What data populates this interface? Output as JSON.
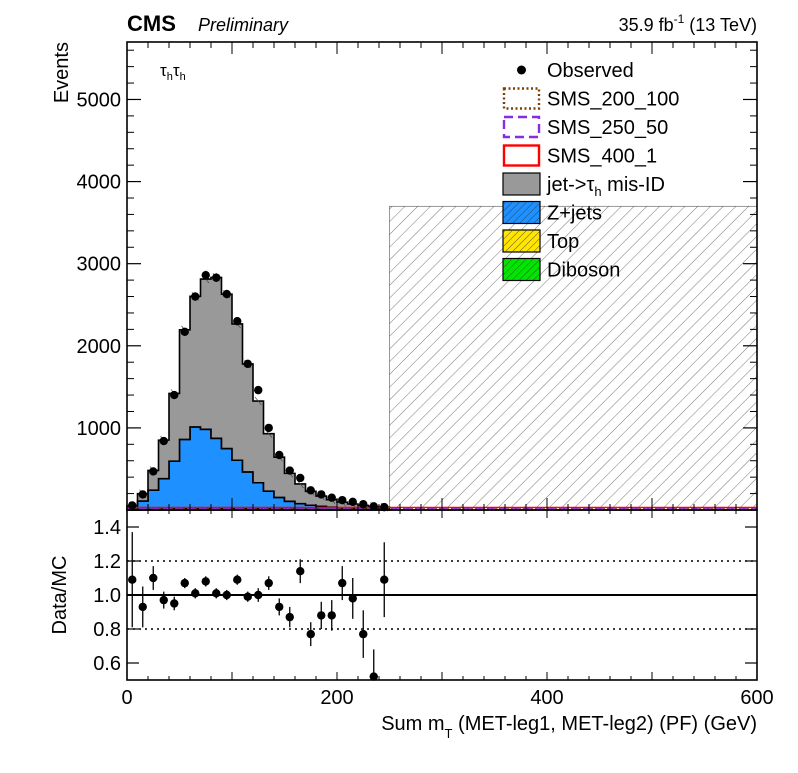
{
  "header": {
    "experiment": "CMS",
    "status": "Preliminary",
    "lumi_prefix": "35.9 fb",
    "lumi_exp": "-1",
    "lumi_suffix": " (13 TeV)"
  },
  "chart_data": {
    "type": "bar",
    "subtype": "stacked-histogram-with-ratio",
    "channel": {
      "tau": "τ",
      "sub": "h"
    },
    "upper": {
      "ylabel": "Events",
      "ylim": [
        0,
        5700
      ],
      "yticks": [
        1000,
        2000,
        3000,
        4000,
        5000
      ],
      "blinded_region": {
        "xmin": 250,
        "xmax": 600,
        "height": 3700
      }
    },
    "xlim": [
      0,
      600
    ],
    "xticks": [
      0,
      200,
      400,
      600
    ],
    "xlabel": {
      "pre": "Sum m",
      "sub": "T",
      "post": " (MET-leg1, MET-leg2) (PF) (GeV)"
    },
    "bin_edges": [
      0,
      10,
      20,
      30,
      40,
      50,
      60,
      70,
      80,
      90,
      100,
      110,
      120,
      130,
      140,
      150,
      160,
      170,
      180,
      190,
      200,
      210,
      220,
      230,
      240,
      250
    ],
    "series": [
      {
        "name": "Diboson",
        "color": "#00e600",
        "values": [
          1,
          2,
          4,
          6,
          8,
          10,
          12,
          12,
          12,
          12,
          11,
          10,
          9,
          8,
          7,
          6,
          5,
          4,
          4,
          3,
          3,
          3,
          2,
          2,
          2
        ]
      },
      {
        "name": "Top",
        "color": "#ffe500",
        "values": [
          1,
          2,
          3,
          5,
          7,
          9,
          10,
          11,
          11,
          11,
          10,
          9,
          8,
          7,
          6,
          5,
          4,
          4,
          3,
          3,
          2,
          2,
          2,
          2,
          1
        ]
      },
      {
        "name": "Z+jets",
        "color": "#1e90ff",
        "values": [
          18,
          105,
          235,
          370,
          580,
          840,
          990,
          960,
          850,
          725,
          585,
          445,
          315,
          215,
          140,
          95,
          68,
          50,
          38,
          28,
          21,
          16,
          12,
          9,
          8
        ]
      },
      {
        "name": "jet->τh mis-ID",
        "label_pre": "jet->τ",
        "label_sub": "h",
        "label_post": " mis-ID",
        "color": "#999999",
        "values": [
          30,
          90,
          240,
          470,
          825,
          1335,
          1590,
          1830,
          1960,
          1880,
          1660,
          1315,
          995,
          700,
          490,
          340,
          240,
          170,
          125,
          92,
          70,
          52,
          40,
          31,
          23
        ]
      }
    ],
    "signals": [
      {
        "name": "SMS_200_100",
        "color": "#7f3f00",
        "style": "dotted"
      },
      {
        "name": "SMS_250_50",
        "color": "#8a2be2",
        "style": "dashed"
      },
      {
        "name": "SMS_400_1",
        "color": "#ff0000",
        "style": "solid"
      }
    ],
    "observed": {
      "name": "Observed",
      "x": [
        5,
        15,
        25,
        35,
        45,
        55,
        65,
        75,
        85,
        95,
        105,
        115,
        125,
        135,
        145,
        155,
        165,
        175,
        185,
        195,
        205,
        215,
        225,
        235,
        245
      ],
      "y": [
        55,
        190,
        470,
        840,
        1400,
        2170,
        2600,
        2860,
        2830,
        2630,
        2300,
        1780,
        1460,
        1000,
        670,
        480,
        390,
        240,
        190,
        150,
        120,
        100,
        70,
        45,
        35
      ]
    },
    "legend": {
      "placement": "top-right",
      "entries": [
        "Observed",
        "SMS_200_100",
        "SMS_250_50",
        "SMS_400_1",
        "jet->τh mis-ID",
        "Z+jets",
        "Top",
        "Diboson"
      ]
    },
    "ratio": {
      "ylabel": "Data/MC",
      "ylim": [
        0.5,
        1.5
      ],
      "yticks": [
        0.6,
        0.8,
        1.0,
        1.2,
        1.4
      ],
      "ytick_labels": [
        "0.6",
        "0.8",
        "1.0",
        "1.2",
        "1.4"
      ],
      "reference_lines": [
        0.8,
        1.0,
        1.2
      ],
      "x": [
        5,
        15,
        25,
        35,
        45,
        55,
        65,
        75,
        85,
        95,
        105,
        115,
        125,
        135,
        145,
        155,
        165,
        175,
        185,
        195,
        205,
        215,
        225,
        235,
        245
      ],
      "y": [
        1.09,
        0.93,
        1.1,
        0.97,
        0.95,
        1.07,
        1.01,
        1.08,
        1.01,
        1.0,
        1.09,
        0.99,
        1.0,
        1.07,
        0.93,
        0.87,
        1.14,
        0.77,
        0.88,
        0.88,
        1.07,
        0.98,
        0.77,
        0.52,
        1.09
      ],
      "err": [
        0.28,
        0.12,
        0.07,
        0.05,
        0.04,
        0.03,
        0.03,
        0.03,
        0.03,
        0.03,
        0.03,
        0.03,
        0.04,
        0.04,
        0.05,
        0.06,
        0.07,
        0.07,
        0.08,
        0.09,
        0.1,
        0.12,
        0.14,
        0.16,
        0.22
      ]
    }
  }
}
